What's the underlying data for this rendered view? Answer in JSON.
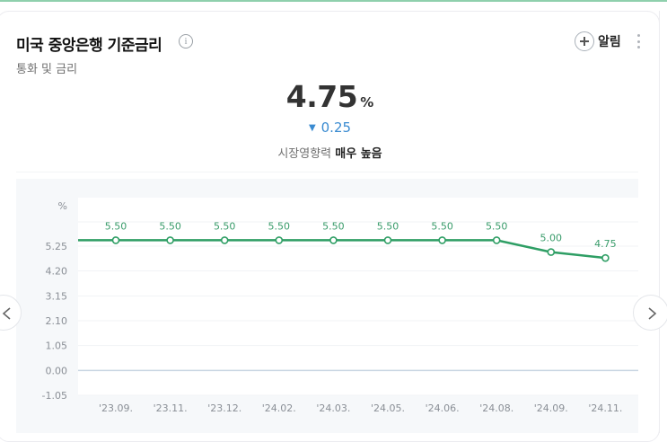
{
  "header": {
    "title": "미국 중앙은행 기준금리",
    "subtitle": "통화 및 금리",
    "alarm_label": "알림"
  },
  "summary": {
    "value": "4.75",
    "unit": "%",
    "change": "0.25",
    "change_direction": "down",
    "change_color": "#3a8bd1",
    "influence_label": "시장영향력",
    "influence_value": "매우 높음"
  },
  "colors": {
    "line": "#2e9e64",
    "label": "#3a9c6b",
    "zero_line": "#c9d6e3"
  },
  "chart_data": {
    "type": "line",
    "title": "미국 중앙은행 기준금리",
    "ylabel": "%",
    "xlabel": "",
    "categories": [
      "'23.09.",
      "'23.11.",
      "'23.12.",
      "'24.02.",
      "'24.03.",
      "'24.05.",
      "'24.06.",
      "'24.08.",
      "'24.09.",
      "'24.11."
    ],
    "series": [
      {
        "name": "기준금리",
        "values": [
          5.5,
          5.5,
          5.5,
          5.5,
          5.5,
          5.5,
          5.5,
          5.5,
          5.0,
          4.75
        ]
      }
    ],
    "data_labels": [
      "5.50",
      "5.50",
      "5.50",
      "5.50",
      "5.50",
      "5.50",
      "5.50",
      "5.50",
      "5.00",
      "4.75"
    ],
    "y_ticks": [
      "5.25",
      "4.20",
      "3.15",
      "2.10",
      "1.05",
      "0.00",
      "-1.05"
    ],
    "ylim": [
      -1.05,
      6.3
    ],
    "grid": true,
    "legend": "none"
  }
}
